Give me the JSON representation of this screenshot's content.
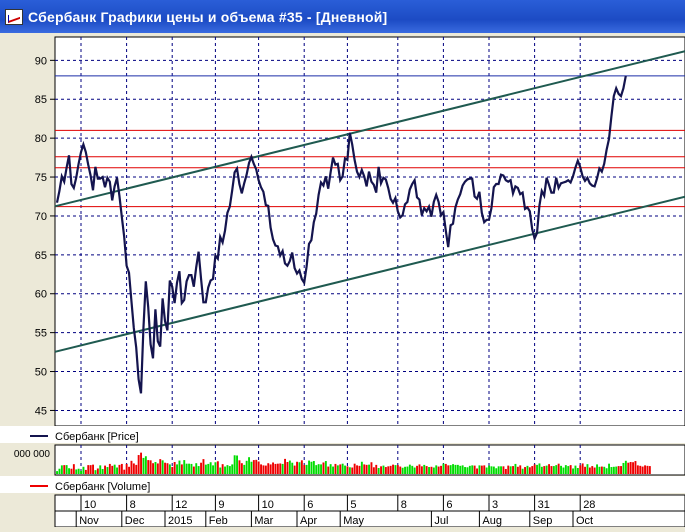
{
  "window": {
    "title": "Сбербанк Графики цены и объема #35 - [Дневной]"
  },
  "colors": {
    "price_line": "#14144e",
    "channel_line": "#1f5a50",
    "resistance_red": "#e00000",
    "current_price_blue": "#1a2ca8",
    "grid": "#000080",
    "volume_up": "#00dd00",
    "volume_down": "#ee0000"
  },
  "chart_data": [
    {
      "type": "line",
      "panel": "price",
      "legend": "Сбербанк [Price]",
      "legend_placement": "bottom-left",
      "ylim": [
        43,
        93
      ],
      "yticks": [
        45,
        50,
        55,
        60,
        65,
        70,
        75,
        80,
        85,
        90
      ],
      "grid": true,
      "horizontal_levels": {
        "red": [
          81,
          77.6,
          76.2,
          71.2
        ],
        "blue": [
          88
        ]
      },
      "trend_channel": [
        {
          "from": [
            0,
            71.3
          ],
          "to": [
            262,
            91.2
          ]
        },
        {
          "from": [
            0,
            52.6
          ],
          "to": [
            262,
            72.5
          ]
        }
      ],
      "series": [
        {
          "values": [
            71.7,
            73.2,
            75.1,
            74.4,
            76.2,
            77.8,
            74.1,
            73.6,
            74.9,
            76.7,
            78.2,
            79.2,
            78.2,
            76.6,
            75.2,
            73.3,
            76.3,
            74.8,
            74.8,
            75.0,
            73.7,
            74.9,
            74.4,
            72.0,
            73.8,
            74.9,
            72.6,
            69.9,
            67.3,
            63.6,
            62.7,
            59.1,
            55.6,
            53.1,
            49.0,
            47.2,
            55.5,
            61.6,
            58.3,
            53.5,
            51.7,
            58.0,
            53.9,
            53.2,
            59.4,
            56.5,
            55.3,
            61.7,
            60.9,
            58.8,
            61.4,
            62.9,
            58.8,
            59.2,
            61.6,
            62.4,
            62.4,
            60.9,
            63.4,
            65.4,
            62.0,
            58.9,
            58.9,
            60.8,
            61.7,
            61.9,
            64.9,
            64.5,
            67.3,
            66.6,
            68.1,
            70.4,
            71.2,
            73.3,
            75.6,
            76.1,
            74.1,
            72.9,
            74.2,
            75.3,
            76.8,
            77.6,
            76.7,
            76.0,
            74.6,
            73.7,
            73.1,
            71.4,
            71.3,
            68.5,
            67.0,
            66.2,
            66.1,
            64.9,
            65.5,
            63.9,
            63.6,
            64.2,
            65.3,
            63.3,
            62.6,
            63.0,
            61.9,
            61.4,
            63.5,
            66.4,
            66.9,
            69.2,
            70.3,
            72.7,
            74.3,
            73.9,
            75.1,
            73.5,
            75.6,
            77.5,
            76.6,
            76.7,
            74.6,
            75.1,
            77.4,
            77.2,
            80.7,
            79.2,
            77.2,
            75.7,
            75.0,
            75.9,
            75.1,
            73.8,
            75.7,
            74.4,
            74.0,
            73.0,
            76.3,
            74.2,
            74.9,
            74.7,
            73.6,
            72.2,
            71.7,
            72.3,
            70.6,
            69.8,
            70.1,
            71.5,
            71.8,
            73.4,
            74.1,
            74.6,
            72.4,
            72.1,
            70.1,
            71.0,
            70.6,
            71.2,
            69.9,
            71.8,
            72.7,
            71.8,
            70.1,
            70.5,
            68.1,
            66.0,
            68.8,
            69.0,
            71.1,
            72.1,
            72.8,
            73.9,
            74.4,
            74.7,
            74.8,
            74.8,
            72.5,
            72.2,
            73.1,
            70.4,
            69.2,
            69.5,
            69.5,
            71.0,
            73.7,
            74.1,
            74.1,
            75.3,
            75.2,
            74.6,
            74.4,
            74.6,
            72.9,
            73.8,
            73.6,
            72.8,
            73.0,
            70.9,
            71.1,
            70.6,
            68.3,
            67.1,
            67.8,
            71.3,
            73.2,
            72.6,
            74.9,
            74.0,
            73.0,
            73.0,
            74.9,
            73.6,
            74.2,
            74.3,
            74.4,
            74.6,
            74.3,
            75.1,
            76.2,
            77.1,
            76.3,
            75.1,
            74.5,
            74.9,
            74.2,
            73.9,
            73.8,
            74.8,
            76.1,
            75.7,
            76.7,
            78.5,
            79.9,
            82.8,
            85.4,
            86.4,
            85.7,
            85.4,
            86.4,
            88.0
          ]
        }
      ]
    },
    {
      "type": "bar",
      "panel": "volume",
      "legend": "Сбербанк [Volume]",
      "legend_placement": "bottom-left",
      "ytick_label": "000 000",
      "series": [
        {
          "values": [
            0.12,
            0.22,
            0.36,
            0.37,
            0.37,
            0.24,
            0.22,
            0.41,
            0.19,
            0.22,
            0.13,
            0.3,
            0.17,
            0.37,
            0.37,
            0.39,
            0.16,
            0.23,
            0.36,
            0.21,
            0.35,
            0.29,
            0.42,
            0.34,
            0.39,
            0.27,
            0.38,
            0.42,
            0.18,
            0.42,
            0.3,
            0.55,
            0.44,
            0.38,
            0.79,
            0.89,
            0.67,
            0.74,
            0.58,
            0.57,
            0.45,
            0.5,
            0.44,
            0.62,
            0.57,
            0.47,
            0.45,
            0.4,
            0.29,
            0.5,
            0.4,
            0.56,
            0.4,
            0.58,
            0.43,
            0.43,
            0.42,
            0.31,
            0.45,
            0.33,
            0.47,
            0.62,
            0.39,
            0.42,
            0.49,
            0.36,
            0.49,
            0.53,
            0.27,
            0.41,
            0.31,
            0.37,
            0.33,
            0.4,
            0.78,
            0.77,
            0.57,
            0.45,
            0.38,
            0.55,
            0.7,
            0.51,
            0.58,
            0.59,
            0.52,
            0.4,
            0.36,
            0.35,
            0.45,
            0.4,
            0.48,
            0.42,
            0.43,
            0.44,
            0.42,
            0.63,
            0.5,
            0.56,
            0.47,
            0.35,
            0.51,
            0.49,
            0.57,
            0.38,
            0.38,
            0.56,
            0.51,
            0.54,
            0.37,
            0.41,
            0.4,
            0.48,
            0.54,
            0.31,
            0.41,
            0.31,
            0.42,
            0.36,
            0.4,
            0.43,
            0.35,
            0.32,
            0.28,
            0.27,
            0.43,
            0.36,
            0.34,
            0.51,
            0.4,
            0.38,
            0.39,
            0.49,
            0.28,
            0.38,
            0.25,
            0.32,
            0.35,
            0.29,
            0.32,
            0.34,
            0.39,
            0.37,
            0.37,
            0.31,
            0.26,
            0.3,
            0.31,
            0.39,
            0.34,
            0.27,
            0.34,
            0.4,
            0.32,
            0.38,
            0.33,
            0.29,
            0.3,
            0.27,
            0.36,
            0.31,
            0.34,
            0.43,
            0.42,
            0.36,
            0.37,
            0.41,
            0.38,
            0.38,
            0.34,
            0.36,
            0.29,
            0.28,
            0.34,
            0.36,
            0.35,
            0.23,
            0.36,
            0.35,
            0.36,
            0.27,
            0.35,
            0.32,
            0.31,
            0.24,
            0.32,
            0.32,
            0.32,
            0.21,
            0.35,
            0.32,
            0.33,
            0.42,
            0.3,
            0.36,
            0.22,
            0.29,
            0.34,
            0.28,
            0.33,
            0.4,
            0.38,
            0.44,
            0.3,
            0.33,
            0.35,
            0.41,
            0.33,
            0.33,
            0.37,
            0.43,
            0.34,
            0.27,
            0.37,
            0.33,
            0.37,
            0.23,
            0.35,
            0.25,
            0.36,
            0.44,
            0.3,
            0.41,
            0.27,
            0.33,
            0.27,
            0.4,
            0.3,
            0.31,
            0.3,
            0.24,
            0.43,
            0.29,
            0.3,
            0.31,
            0.33,
            0.33,
            0.46,
            0.55,
            0.47,
            0.5,
            0.49,
            0.54,
            0.36,
            0.34,
            0.31,
            0.36,
            0.34,
            0.33
          ]
        }
      ]
    }
  ],
  "axis": {
    "day_labels": [
      {
        "i": 10,
        "label": "10"
      },
      {
        "i": 29,
        "label": "8"
      },
      {
        "i": 48,
        "label": "12"
      },
      {
        "i": 66,
        "label": "9"
      },
      {
        "i": 84,
        "label": "10"
      },
      {
        "i": 103,
        "label": "6"
      },
      {
        "i": 121,
        "label": "5"
      },
      {
        "i": 142,
        "label": "8"
      },
      {
        "i": 161,
        "label": "6"
      },
      {
        "i": 180,
        "label": "3"
      },
      {
        "i": 199,
        "label": "31"
      },
      {
        "i": 218,
        "label": "28"
      }
    ],
    "month_labels": [
      {
        "i": 8,
        "label": "Nov"
      },
      {
        "i": 27,
        "label": "Dec"
      },
      {
        "i": 45,
        "label": "2015"
      },
      {
        "i": 62,
        "label": "Feb"
      },
      {
        "i": 81,
        "label": "Mar"
      },
      {
        "i": 100,
        "label": "Apr"
      },
      {
        "i": 118,
        "label": "May"
      },
      {
        "i": 156,
        "label": "Jul"
      },
      {
        "i": 176,
        "label": "Aug"
      },
      {
        "i": 197,
        "label": "Sep"
      },
      {
        "i": 215,
        "label": "Oct"
      }
    ]
  }
}
